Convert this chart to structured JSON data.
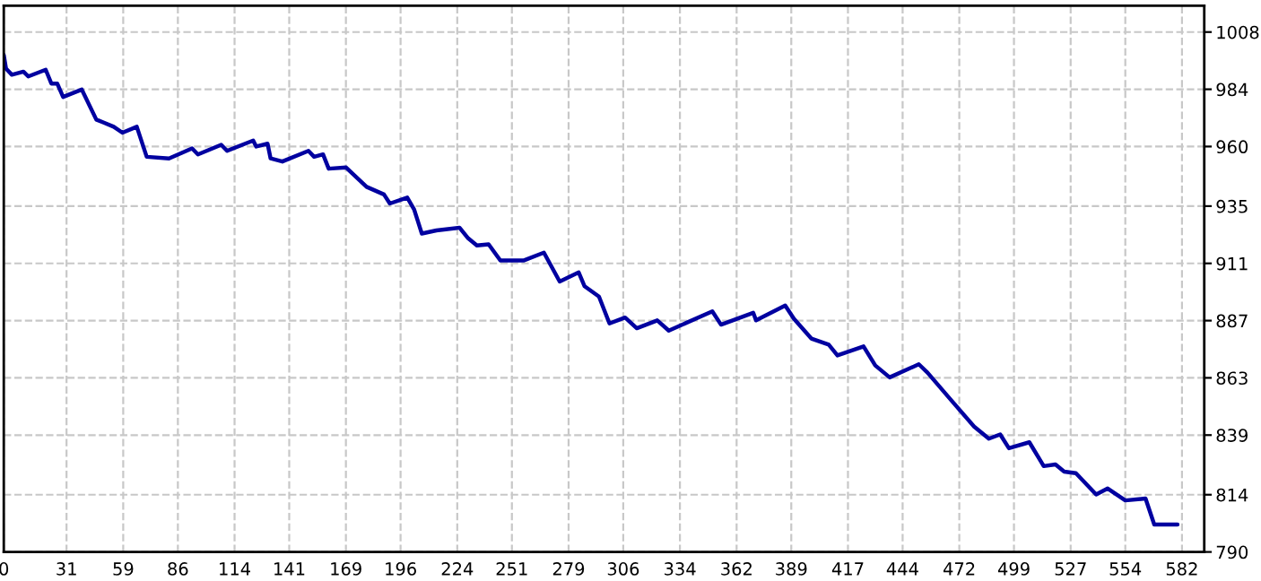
{
  "chart_data": {
    "type": "line",
    "x": [
      0,
      1.1,
      4.0,
      9.7,
      12.1,
      20.7,
      23.5,
      26.4,
      29.3,
      38.5,
      45.7,
      49.4,
      54.3,
      58.6,
      65.7,
      70.6,
      81.6,
      93.0,
      95.9,
      107.4,
      110.3,
      123.2,
      124.7,
      130.3,
      131.8,
      137.6,
      150.5,
      153.3,
      157.7,
      160.5,
      169.1,
      179.2,
      187.8,
      190.7,
      199.3,
      202.7,
      206.5,
      213.7,
      225.1,
      229.4,
      233.7,
      239.5,
      245.3,
      256.7,
      266.8,
      274.6,
      284.0,
      286.9,
      294.0,
      299.2,
      306.9,
      312.7,
      322.8,
      328.5,
      350.0,
      354.3,
      370.2,
      371.6,
      386.0,
      390.3,
      398.9,
      407.5,
      411.8,
      424.7,
      430.5,
      437.6,
      452.0,
      456.3,
      468.0,
      479.3,
      486.6,
      492.2,
      496.5,
      506.6,
      513.7,
      519.5,
      523.8,
      529.6,
      539.6,
      545.3,
      554.0,
      564.0,
      568.3,
      579.8
    ],
    "series": [
      {
        "color": "#0000a0",
        "values": [
          998.4,
          992.7,
          990.1,
          991.4,
          989.4,
          992.2,
          986.4,
          986.4,
          980.8,
          983.9,
          971.3,
          970,
          968.3,
          965.8,
          968.3,
          955.7,
          955,
          959.2,
          956.7,
          960.7,
          958.2,
          962.5,
          960,
          961.2,
          955,
          953.7,
          958.2,
          955.7,
          956.7,
          950.7,
          951.2,
          943.1,
          939.9,
          936.1,
          938.6,
          933.6,
          923.5,
          924.8,
          926,
          921.5,
          918.5,
          919,
          912.2,
          912.2,
          915.5,
          903.4,
          907.2,
          901.4,
          897.1,
          885.8,
          888.3,
          883.8,
          887.1,
          882.8,
          890.9,
          885.3,
          890.3,
          887.1,
          893.3,
          887.8,
          879.5,
          876.9,
          872.4,
          876.2,
          868.2,
          863.2,
          868.7,
          865.2,
          853.6,
          842.6,
          837.5,
          839.3,
          833.5,
          836,
          826,
          826.7,
          823.7,
          823,
          814.1,
          816.6,
          811.6,
          812.4,
          801.5,
          801.5
        ]
      }
    ],
    "xlim": [
      0,
      593
    ],
    "ylim": [
      790,
      1019
    ],
    "xticks": [
      0,
      31,
      59,
      86,
      114,
      141,
      169,
      196,
      224,
      251,
      279,
      306,
      334,
      362,
      389,
      417,
      444,
      472,
      499,
      527,
      554,
      582
    ],
    "yticks": [
      790,
      814,
      839,
      863,
      887,
      911,
      935,
      960,
      984,
      1008
    ],
    "grid": true,
    "line_style": "solid",
    "marker": "none"
  }
}
